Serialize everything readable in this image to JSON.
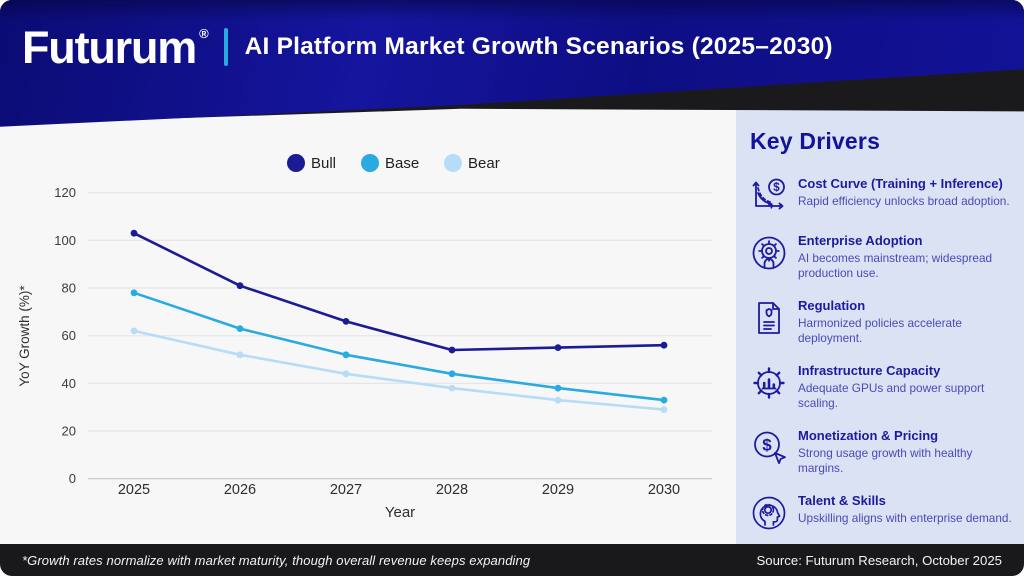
{
  "header": {
    "brand": "Futurum",
    "registered_mark": "®",
    "title": "AI Platform Market Growth Scenarios (2025–2030)"
  },
  "chart_data": {
    "type": "line",
    "title": "",
    "xlabel": "Year",
    "ylabel": "YoY Growth (%)*",
    "categories": [
      "2025",
      "2026",
      "2027",
      "2028",
      "2029",
      "2030"
    ],
    "yticks": [
      0,
      20,
      40,
      60,
      80,
      100,
      120
    ],
    "ylim": [
      0,
      120
    ],
    "grid": true,
    "legend_position": "top-center",
    "series": [
      {
        "name": "Bull",
        "color": "#1b1b96",
        "values": [
          103,
          81,
          66,
          54,
          55,
          56
        ]
      },
      {
        "name": "Base",
        "color": "#29abe2",
        "values": [
          78,
          63,
          52,
          44,
          38,
          33
        ]
      },
      {
        "name": "Bear",
        "color": "#b7dcf7",
        "values": [
          62,
          52,
          44,
          38,
          33,
          29
        ]
      }
    ]
  },
  "sidebar": {
    "title": "Key Drivers",
    "drivers": [
      {
        "icon": "cost-curve-icon",
        "title": "Cost Curve (Training + Inference)",
        "description": "Rapid efficiency unlocks broad adoption."
      },
      {
        "icon": "enterprise-adoption-icon",
        "title": "Enterprise Adoption",
        "description": "AI becomes mainstream; widespread production use."
      },
      {
        "icon": "regulation-icon",
        "title": "Regulation",
        "description": "Harmonized policies accelerate deployment."
      },
      {
        "icon": "infrastructure-capacity-icon",
        "title": "Infrastructure Capacity",
        "description": "Adequate GPUs and power support scaling."
      },
      {
        "icon": "monetization-pricing-icon",
        "title": "Monetization & Pricing",
        "description": "Strong usage growth with healthy margins."
      },
      {
        "icon": "talent-skills-icon",
        "title": "Talent & Skills",
        "description": "Upskilling aligns with enterprise demand."
      }
    ]
  },
  "footer": {
    "note": "*Growth rates normalize with market maturity, though overall revenue keeps expanding",
    "source": "Source: Futurum Research, October 2025"
  },
  "colors": {
    "header_blue": "#10108c",
    "accent_cyan": "#29abe2",
    "sidebar_bg": "#dbe2f4",
    "navy_text": "#1a1aa2",
    "chart_bg": "#f7f7f8",
    "footer_bg": "#19191c"
  }
}
